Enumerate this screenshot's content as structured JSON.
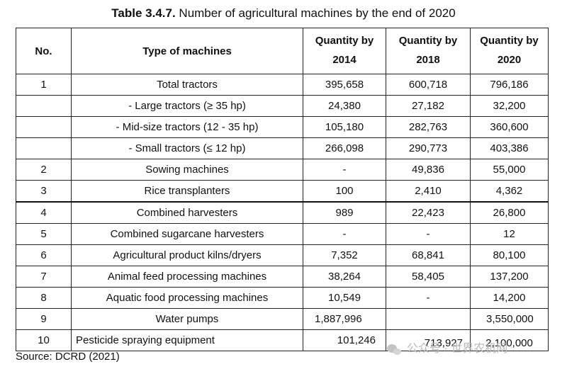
{
  "caption": {
    "label": "Table 3.4.7.",
    "text": " Number of agricultural machines by the end of 2020"
  },
  "table": {
    "headers": {
      "no": "No.",
      "type": "Type of machines",
      "y2014_line1": "Quantity by",
      "y2014_line2": "2014",
      "y2018_line1": "Quantity by",
      "y2018_line2": "2018",
      "y2020_line1": "Quantity by",
      "y2020_line2": "2020"
    },
    "rows": [
      {
        "no": "1",
        "type": "Total tractors",
        "q2014": "395,658",
        "q2018": "600,718",
        "q2020": "796,186"
      },
      {
        "no": "",
        "type": "- Large tractors (≥ 35 hp)",
        "q2014": "24,380",
        "q2018": "27,182",
        "q2020": "32,200"
      },
      {
        "no": "",
        "type": "- Mid-size tractors (12 - 35 hp)",
        "q2014": "105,180",
        "q2018": "282,763",
        "q2020": "360,600"
      },
      {
        "no": "",
        "type": "- Small tractors (≤ 12 hp)",
        "q2014": "266,098",
        "q2018": "290,773",
        "q2020": "403,386"
      },
      {
        "no": "2",
        "type": "Sowing machines",
        "q2014": "-",
        "q2018": "49,836",
        "q2020": "55,000"
      },
      {
        "no": "3",
        "type": "Rice transplanters",
        "q2014": "100",
        "q2018": "2,410",
        "q2020": "4,362"
      },
      {
        "no": "4",
        "type": "Combined harvesters",
        "q2014": "989",
        "q2018": "22,423",
        "q2020": "26,800"
      },
      {
        "no": "5",
        "type": "Combined sugarcane harvesters",
        "q2014": "-",
        "q2018": "-",
        "q2020": "12"
      },
      {
        "no": "6",
        "type": "Agricultural product kilns/dryers",
        "q2014": "7,352",
        "q2018": "68,841",
        "q2020": "80,100"
      },
      {
        "no": "7",
        "type": "Animal feed processing machines",
        "q2014": "38,264",
        "q2018": "58,405",
        "q2020": "137,200"
      },
      {
        "no": "8",
        "type": "Aquatic food processing machines",
        "q2014": "10,549",
        "q2018": "-",
        "q2020": "14,200"
      },
      {
        "no": "9",
        "type": "Water pumps",
        "q2014": "1,887,996",
        "q2018": "",
        "q2020": "3,550,000"
      },
      {
        "no": "10",
        "type": "Pesticide spraying equipment",
        "q2014": "101,246",
        "q2018": "713,927",
        "q2020": "2,100,000"
      }
    ]
  },
  "source": "Source: DCRD (2021)",
  "watermark": {
    "icon": "wechat-icon",
    "text": "公众号 · 世界农机网"
  }
}
